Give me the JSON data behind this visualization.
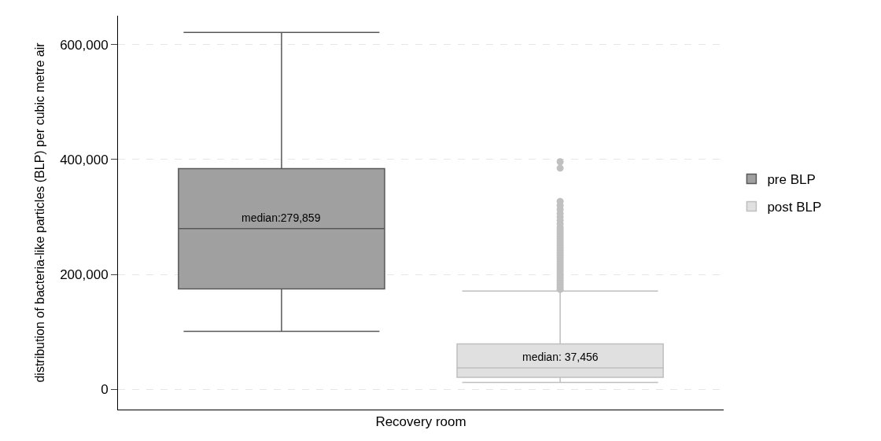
{
  "chart_data": {
    "type": "box",
    "ylabel": "distribution of bacteria-like particles (BLP) per cubic metre air",
    "categories": [
      "Recovery room"
    ],
    "series": [
      {
        "name": "pre BLP",
        "color": "#a0a0a0",
        "boxes": [
          {
            "low": 101000,
            "q1": 175000,
            "median": 279859,
            "q3": 384000,
            "high": 621000
          }
        ]
      },
      {
        "name": "post BLP",
        "color": "#e0e0e0",
        "boxes": [
          {
            "low": 12000,
            "q1": 21000,
            "median": 37456,
            "q3": 79000,
            "high": 171000,
            "outliers": [
              396000,
              385000,
              327000,
              320000,
              313000,
              306000,
              300000,
              294000,
              288000,
              282000,
              278000,
              274000,
              270000,
              266000,
              262000,
              258000,
              254000,
              250000,
              246000,
              242000,
              238000,
              234000,
              230000,
              226000,
              222000,
              218000,
              214000,
              210000,
              206000,
              202000,
              198000,
              194000,
              190000,
              186000,
              182000,
              178000,
              174000
            ]
          }
        ]
      }
    ],
    "ylim": [
      -35000,
      650000
    ],
    "yticks": [
      {
        "value": 0,
        "label": "0"
      },
      {
        "value": 200000,
        "label": "200,000"
      },
      {
        "value": 400000,
        "label": "400,000"
      },
      {
        "value": 600000,
        "label": "600,000"
      }
    ],
    "annotations": [
      "median:279,859",
      "median: 37,456"
    ],
    "grid": "y",
    "legend": "right"
  }
}
